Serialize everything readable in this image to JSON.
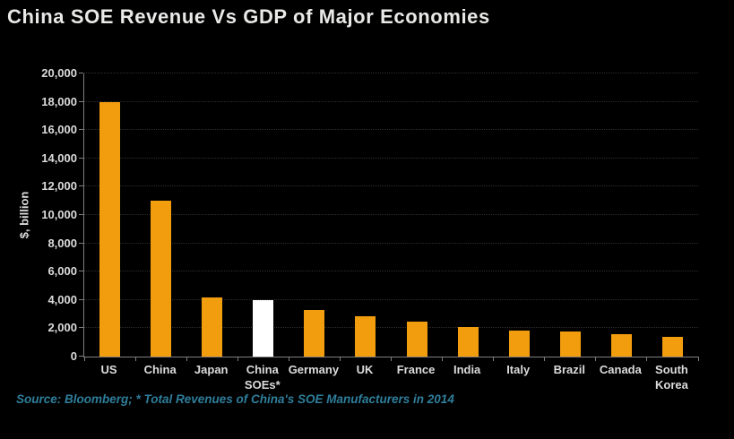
{
  "title": "China SOE Revenue Vs GDP of Major Economies",
  "source_note": "Source: Bloomberg; * Total Revenues of China's SOE Manufacturers in 2014",
  "colors": {
    "background": "#000000",
    "bar_orange": "#F29D0D",
    "bar_highlight": "#FFFFFF",
    "title_text": "#E9E9E7",
    "axis_text": "#DCDCDC",
    "axis_line": "#7F7F7F",
    "gridline": "#2E2E2E",
    "source_text": "#2F7E9B"
  },
  "chart_data": {
    "type": "bar",
    "title": "China SOE Revenue Vs GDP of Major Economies",
    "categories": [
      "US",
      "China",
      "Japan",
      "China\nSOEs*",
      "Germany",
      "UK",
      "France",
      "India",
      "Italy",
      "Brazil",
      "Canada",
      "South\nKorea"
    ],
    "values": [
      18000,
      11000,
      4200,
      4000,
      3300,
      2850,
      2450,
      2100,
      1850,
      1800,
      1600,
      1400
    ],
    "bar_colors": [
      "#F29D0D",
      "#F29D0D",
      "#F29D0D",
      "#FFFFFF",
      "#F29D0D",
      "#F29D0D",
      "#F29D0D",
      "#F29D0D",
      "#F29D0D",
      "#F29D0D",
      "#F29D0D",
      "#F29D0D"
    ],
    "highlighted_category": "China\nSOEs*",
    "xlabel": "",
    "ylabel": "$, billion",
    "ylim": [
      0,
      20000
    ],
    "ytick_step": 2000,
    "y_tick_labels": [
      "0",
      "2,000",
      "4,000",
      "6,000",
      "8,000",
      "10,000",
      "12,000",
      "14,000",
      "16,000",
      "18,000",
      "20,000"
    ],
    "grid": "horizontal-dotted",
    "legend": "none"
  }
}
